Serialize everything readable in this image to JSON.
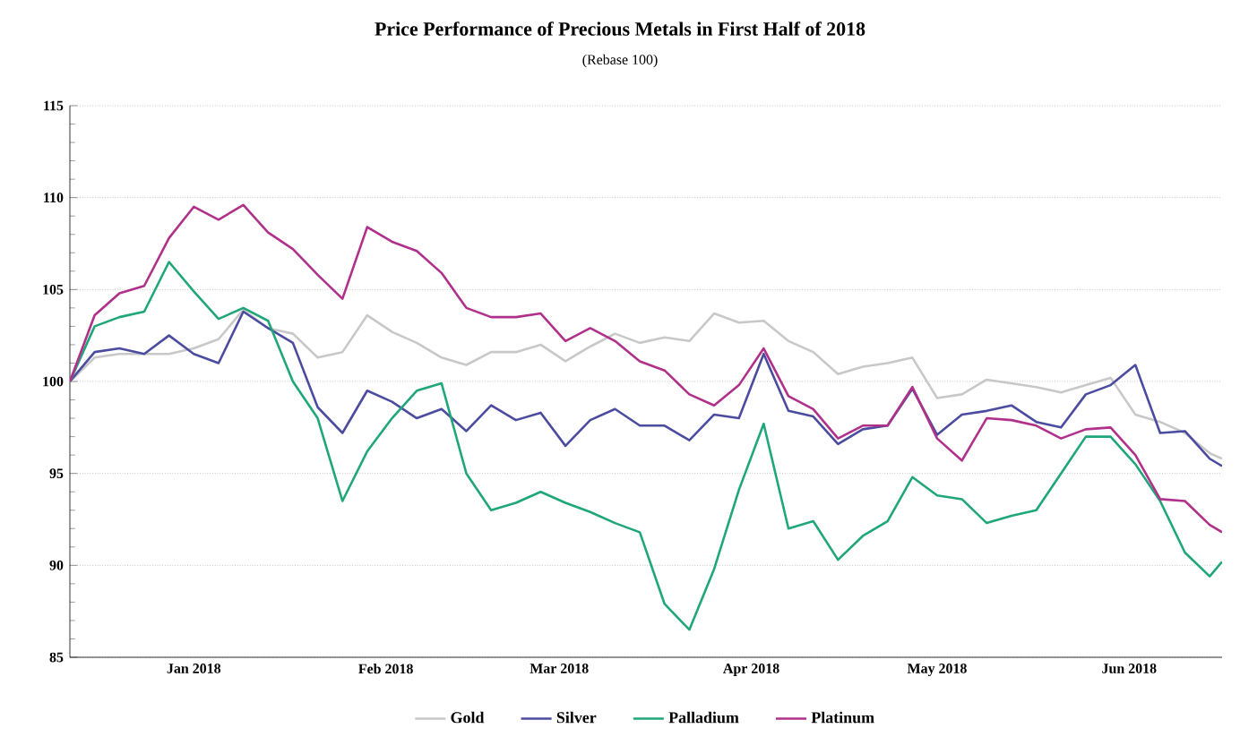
{
  "chart_data": {
    "type": "line",
    "title": "Price Performance of Precious Metals in First Half of 2018",
    "subtitle": "(Rebase 100)",
    "x": [
      "2017-12-26",
      "2017-12-30",
      "2018-01-03",
      "2018-01-07",
      "2018-01-11",
      "2018-01-15",
      "2018-01-19",
      "2018-01-23",
      "2018-01-27",
      "2018-01-31",
      "2018-02-04",
      "2018-02-08",
      "2018-02-12",
      "2018-02-16",
      "2018-02-20",
      "2018-02-24",
      "2018-02-28",
      "2018-03-04",
      "2018-03-08",
      "2018-03-12",
      "2018-03-16",
      "2018-03-20",
      "2018-03-24",
      "2018-03-28",
      "2018-04-01",
      "2018-04-05",
      "2018-04-09",
      "2018-04-13",
      "2018-04-17",
      "2018-04-21",
      "2018-04-25",
      "2018-04-29",
      "2018-05-03",
      "2018-05-07",
      "2018-05-11",
      "2018-05-15",
      "2018-05-19",
      "2018-05-23",
      "2018-05-27",
      "2018-05-31",
      "2018-06-04",
      "2018-06-08",
      "2018-06-12",
      "2018-06-16",
      "2018-06-20",
      "2018-06-24",
      "2018-06-28",
      "2018-06-30"
    ],
    "series": [
      {
        "name": "Gold",
        "color": "#c8c8c8",
        "values": [
          100,
          101.3,
          101.5,
          101.5,
          101.5,
          101.8,
          102.3,
          103.9,
          102.9,
          102.6,
          101.3,
          101.6,
          103.6,
          102.7,
          102.1,
          101.3,
          100.9,
          101.6,
          101.6,
          102.0,
          101.1,
          101.9,
          102.6,
          102.1,
          102.4,
          102.2,
          103.7,
          103.2,
          103.3,
          102.2,
          101.6,
          100.4,
          100.8,
          101.0,
          101.3,
          99.1,
          99.3,
          100.1,
          99.9,
          99.7,
          99.4,
          99.8,
          100.2,
          98.2,
          97.8,
          97.2,
          96.1,
          95.8
        ]
      },
      {
        "name": "Silver",
        "color": "#4b4ba0",
        "values": [
          100,
          101.6,
          101.8,
          101.5,
          102.5,
          101.5,
          101.0,
          103.8,
          102.9,
          102.1,
          98.6,
          97.2,
          99.5,
          98.9,
          98.0,
          98.5,
          97.3,
          98.7,
          97.9,
          98.3,
          96.5,
          97.9,
          98.5,
          97.6,
          97.6,
          96.8,
          98.2,
          98.0,
          101.5,
          98.4,
          98.1,
          96.6,
          97.4,
          97.6,
          99.6,
          97.1,
          98.2,
          98.4,
          98.7,
          97.8,
          97.5,
          99.3,
          99.8,
          100.9,
          97.2,
          97.3,
          95.8,
          95.4
        ]
      },
      {
        "name": "Palladium",
        "color": "#1fa67a",
        "values": [
          100,
          103.0,
          103.5,
          103.8,
          106.5,
          104.9,
          103.4,
          104.0,
          103.3,
          100.0,
          98.0,
          93.5,
          96.2,
          98.0,
          99.5,
          99.9,
          95.0,
          93.0,
          93.4,
          94.0,
          93.4,
          92.9,
          92.3,
          91.8,
          87.9,
          86.5,
          89.8,
          94.1,
          97.7,
          92.0,
          92.4,
          90.3,
          91.6,
          92.4,
          94.8,
          93.8,
          93.6,
          92.3,
          92.7,
          93.0,
          95.0,
          97.0,
          97.0,
          95.5,
          93.5,
          90.7,
          89.4,
          90.2
        ]
      },
      {
        "name": "Platinum",
        "color": "#b0308a",
        "values": [
          100,
          103.6,
          104.8,
          105.2,
          107.8,
          109.5,
          108.8,
          109.6,
          108.1,
          107.2,
          105.8,
          104.5,
          108.4,
          107.6,
          107.1,
          105.9,
          104.0,
          103.5,
          103.5,
          103.7,
          102.2,
          102.9,
          102.2,
          101.1,
          100.6,
          99.3,
          98.7,
          99.8,
          101.8,
          99.2,
          98.5,
          96.9,
          97.6,
          97.6,
          99.7,
          96.9,
          95.7,
          98.0,
          97.9,
          97.6,
          96.9,
          97.4,
          97.5,
          96.0,
          93.6,
          93.5,
          92.2,
          91.8
        ]
      }
    ],
    "xlim": [
      "2017-12-26",
      "2018-06-30"
    ],
    "xticks": [
      {
        "value": "2018-01-15",
        "label": "Jan 2018"
      },
      {
        "value": "2018-02-15",
        "label": "Feb 2018"
      },
      {
        "value": "2018-03-15",
        "label": "Mar 2018"
      },
      {
        "value": "2018-04-15",
        "label": "Apr 2018"
      },
      {
        "value": "2018-05-15",
        "label": "May 2018"
      },
      {
        "value": "2018-06-15",
        "label": "Jun 2018"
      }
    ],
    "ylim": [
      85,
      115
    ],
    "yticks": [
      85,
      90,
      95,
      100,
      105,
      110,
      115
    ],
    "grid": "y",
    "legend": "bottom",
    "marker": "none",
    "line_style": "solid"
  }
}
